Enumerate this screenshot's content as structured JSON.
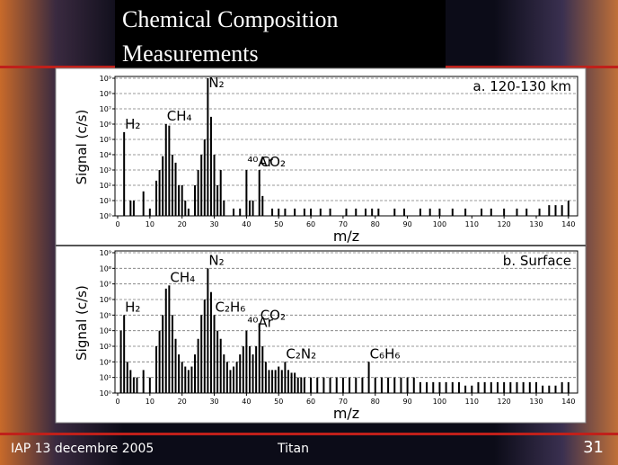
{
  "slide": {
    "title_lines": [
      "Chemical Composition",
      "Measurements"
    ],
    "footer_left": "IAP 13 decembre 2005",
    "footer_center": "Titan",
    "page_number": "31"
  },
  "chart_data": [
    {
      "type": "bar",
      "panel_label": "a. 120-130 km",
      "x_label": "m/z",
      "y_label": "Signal (c/s)",
      "log_y": true,
      "grid": true,
      "color": "#000000",
      "xlim": [
        0,
        142
      ],
      "xticks": [
        0,
        10,
        20,
        30,
        40,
        50,
        60,
        70,
        80,
        90,
        100,
        110,
        120,
        130,
        140
      ],
      "ylim": [
        1,
        1000000000
      ],
      "yticks": [
        {
          "value": 1,
          "label": "10⁰"
        },
        {
          "value": 10,
          "label": "10¹"
        },
        {
          "value": 100,
          "label": "10²"
        },
        {
          "value": 1000,
          "label": "10³"
        },
        {
          "value": 10000,
          "label": "10⁴"
        },
        {
          "value": 100000,
          "label": "10⁵"
        },
        {
          "value": 1000000,
          "label": "10⁶"
        },
        {
          "value": 10000000,
          "label": "10⁷"
        },
        {
          "value": 100000000,
          "label": "10⁸"
        },
        {
          "value": 1000000000,
          "label": "10⁹"
        }
      ],
      "x": [
        2,
        4,
        5,
        8,
        10,
        12,
        13,
        14,
        15,
        16,
        17,
        18,
        19,
        20,
        21,
        22,
        24,
        25,
        26,
        27,
        28,
        29,
        30,
        31,
        32,
        33,
        36,
        38,
        40,
        41,
        42,
        44,
        45,
        48,
        50,
        52,
        55,
        58,
        60,
        63,
        66,
        71,
        74,
        77,
        79,
        81,
        86,
        89,
        94,
        97,
        100,
        104,
        108,
        113,
        116,
        120,
        124,
        127,
        131,
        134,
        136,
        138,
        140
      ],
      "values": [
        300000,
        10,
        10,
        40,
        3,
        200,
        1000,
        8000,
        1000000,
        800000,
        10000,
        3000,
        100,
        100,
        10,
        3,
        100,
        1000,
        10000,
        100000,
        1000000000,
        3000000,
        10000,
        100,
        1000,
        10,
        3,
        3,
        1000,
        10,
        10,
        1000,
        20,
        3,
        3,
        3,
        3,
        3,
        3,
        3,
        3,
        3,
        3,
        3,
        3,
        3,
        3,
        3,
        3,
        3,
        3,
        3,
        3,
        3,
        3,
        3,
        3,
        3,
        3,
        5,
        5,
        5,
        10
      ],
      "annotations": [
        {
          "text": "H₂",
          "x": 2
        },
        {
          "text": "CH₄",
          "x": 15
        },
        {
          "text": "N₂",
          "x": 28
        },
        {
          "text": "⁴⁰Ar",
          "x": 40
        },
        {
          "text": "CO₂",
          "x": 44
        }
      ]
    },
    {
      "type": "bar",
      "panel_label": "b. Surface",
      "x_label": "m/z",
      "y_label": "Signal (c/s)",
      "log_y": true,
      "grid": true,
      "color": "#000000",
      "xlim": [
        0,
        142
      ],
      "xticks": [
        0,
        10,
        20,
        30,
        40,
        50,
        60,
        70,
        80,
        90,
        100,
        110,
        120,
        130,
        140
      ],
      "ylim": [
        1,
        1000000000
      ],
      "yticks": [
        {
          "value": 1,
          "label": "10⁰"
        },
        {
          "value": 10,
          "label": "10¹"
        },
        {
          "value": 100,
          "label": "10²"
        },
        {
          "value": 1000,
          "label": "10³"
        },
        {
          "value": 10000,
          "label": "10⁴"
        },
        {
          "value": 100000,
          "label": "10⁵"
        },
        {
          "value": 1000000,
          "label": "10⁶"
        },
        {
          "value": 10000000,
          "label": "10⁷"
        },
        {
          "value": 100000000,
          "label": "10⁸"
        },
        {
          "value": 1000000000,
          "label": "10⁹"
        }
      ],
      "x": [
        1,
        2,
        3,
        4,
        5,
        6,
        8,
        10,
        12,
        13,
        14,
        15,
        16,
        17,
        18,
        19,
        20,
        21,
        22,
        23,
        24,
        25,
        26,
        27,
        28,
        29,
        30,
        31,
        32,
        33,
        34,
        35,
        36,
        37,
        38,
        39,
        40,
        41,
        42,
        43,
        44,
        45,
        46,
        47,
        48,
        49,
        50,
        51,
        52,
        53,
        54,
        55,
        56,
        57,
        58,
        60,
        62,
        64,
        66,
        68,
        70,
        72,
        74,
        76,
        78,
        80,
        82,
        84,
        86,
        88,
        90,
        92,
        94,
        96,
        98,
        100,
        102,
        104,
        106,
        108,
        110,
        112,
        114,
        116,
        118,
        120,
        122,
        124,
        126,
        128,
        130,
        132,
        134,
        136,
        138,
        140
      ],
      "values": [
        10000,
        100000,
        100,
        30,
        10,
        10,
        30,
        10,
        1000,
        10000,
        100000,
        5000000,
        8000000,
        100000,
        3000,
        300,
        100,
        50,
        30,
        50,
        300,
        3000,
        100000,
        1000000,
        100000000,
        3000000,
        100000,
        10000,
        3000,
        300,
        100,
        30,
        50,
        100,
        300,
        1000,
        10000,
        1000,
        300,
        1000,
        30000,
        1000,
        100,
        30,
        30,
        30,
        50,
        30,
        100,
        30,
        20,
        20,
        10,
        10,
        10,
        10,
        10,
        10,
        10,
        10,
        10,
        10,
        10,
        10,
        100,
        10,
        10,
        10,
        10,
        10,
        10,
        10,
        5,
        5,
        5,
        5,
        5,
        5,
        5,
        3,
        3,
        5,
        5,
        5,
        5,
        5,
        5,
        5,
        5,
        5,
        5,
        3,
        3,
        3,
        5,
        5
      ],
      "annotations": [
        {
          "text": "H₂",
          "x": 2
        },
        {
          "text": "CH₄",
          "x": 16
        },
        {
          "text": "N₂",
          "x": 28
        },
        {
          "text": "C₂H₆",
          "x": 30
        },
        {
          "text": "⁴⁰Ar",
          "x": 40
        },
        {
          "text": "CO₂",
          "x": 44
        },
        {
          "text": "C₂N₂",
          "x": 52
        },
        {
          "text": "C₆H₆",
          "x": 78
        }
      ]
    }
  ]
}
